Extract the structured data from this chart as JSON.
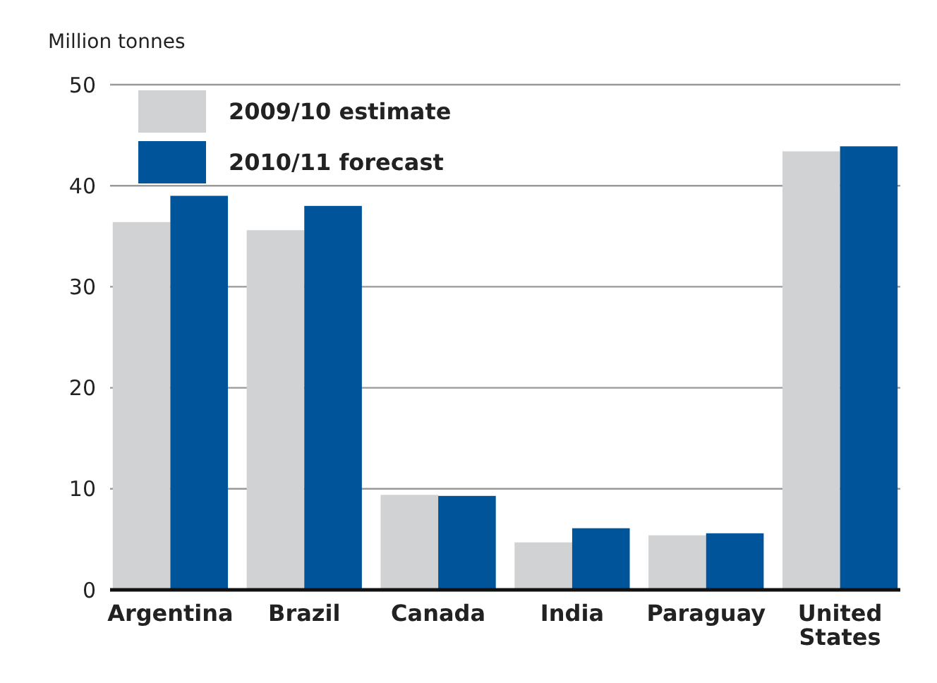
{
  "chart_data": {
    "type": "bar",
    "ylabel": "Million tonnes",
    "categories": [
      "Argentina",
      "Brazil",
      "Canada",
      "India",
      "Paraguay",
      "United States"
    ],
    "series": [
      {
        "name": "2009/10 estimate",
        "color": "#d1d2d4",
        "values": [
          36.4,
          35.6,
          9.4,
          4.7,
          5.4,
          43.4
        ]
      },
      {
        "name": "2010/11 forecast",
        "color": "#00559a",
        "values": [
          39.0,
          38.0,
          9.3,
          6.1,
          5.6,
          43.9
        ]
      }
    ],
    "ylim": [
      0,
      50
    ],
    "yticks": [
      0,
      10,
      20,
      30,
      40,
      50
    ],
    "grid": "y",
    "legend": "top left"
  }
}
